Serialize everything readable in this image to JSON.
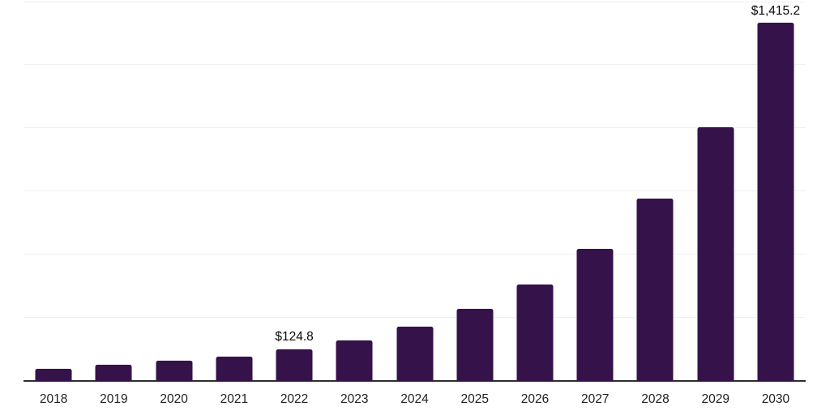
{
  "chart_data": {
    "type": "bar",
    "title": "",
    "xlabel": "",
    "ylabel": "",
    "categories": [
      "2018",
      "2019",
      "2020",
      "2021",
      "2022",
      "2023",
      "2024",
      "2025",
      "2026",
      "2027",
      "2028",
      "2029",
      "2030"
    ],
    "values": [
      46,
      64,
      78,
      94,
      124.8,
      158,
      215,
      283,
      381,
      522,
      721,
      1004,
      1415.2
    ],
    "data_labels": {
      "2022": "$124.8",
      "2030": "$1,415.2"
    },
    "ylim": [
      0,
      1500
    ],
    "gridline_values": [
      250,
      500,
      750,
      1000,
      1250,
      1500
    ],
    "grid": "horizontal",
    "y_tick_labels": "none",
    "legend": "none",
    "colors": {
      "bar": "#35124a",
      "gridline": "#f0f0f0",
      "axis_line": "#2e2e2e",
      "x_tick_label": "#1f1f1f",
      "data_label": "#0a0a0a",
      "background": "#ffffff"
    }
  }
}
